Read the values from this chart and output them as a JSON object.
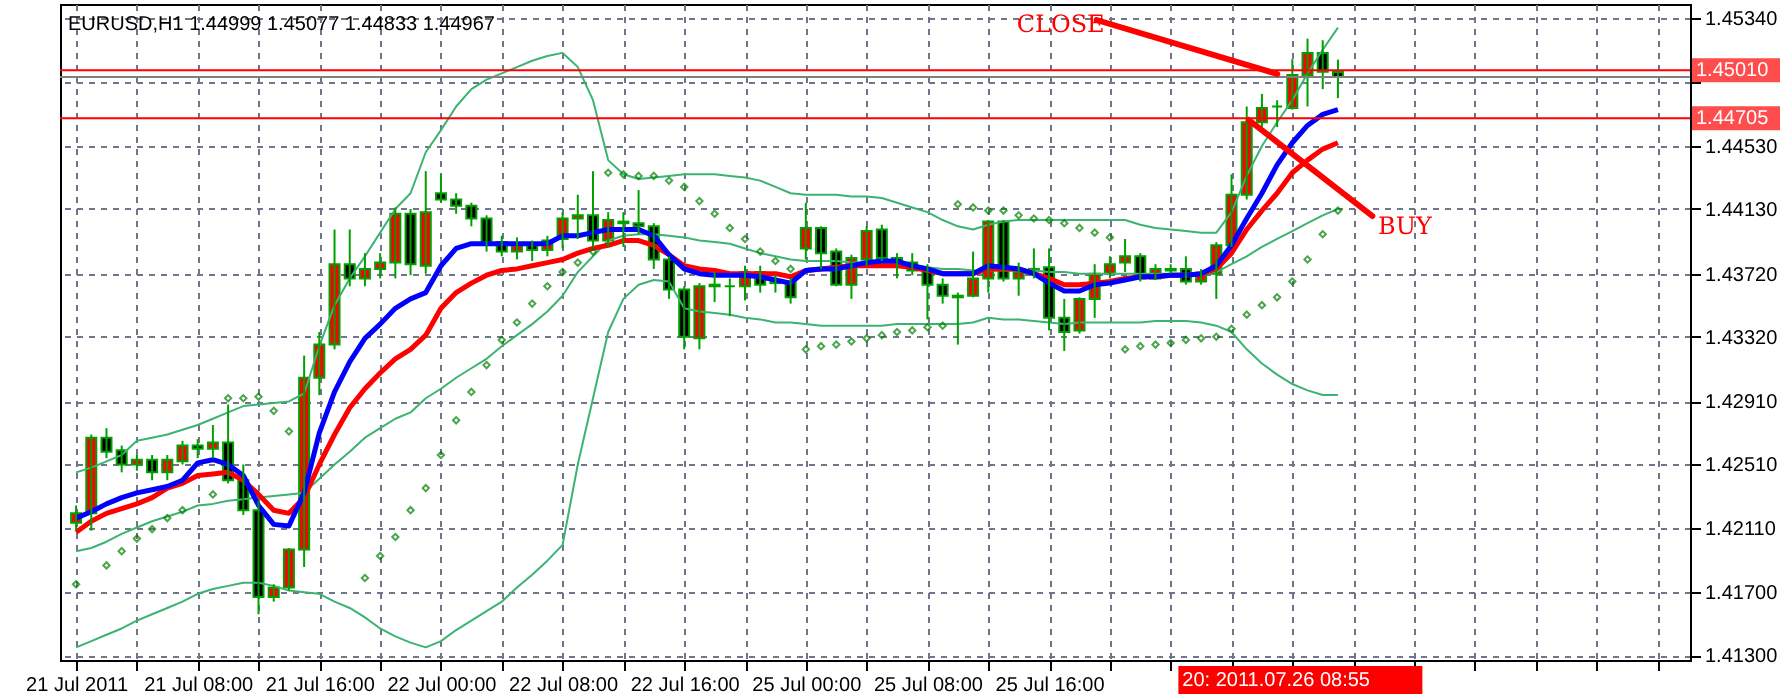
{
  "chart_data": {
    "type": "candlestick",
    "title": "EURUSD,H1  1.44999 1.45077 1.44833 1.44967",
    "categories": [
      "21 Jul 2011",
      null,
      null,
      null,
      null,
      null,
      null,
      null,
      "21 Jul 08:00",
      null,
      null,
      null,
      null,
      null,
      null,
      null,
      "21 Jul 16:00",
      null,
      null,
      null,
      null,
      null,
      null,
      null,
      "22 Jul 00:00",
      null,
      null,
      null,
      null,
      null,
      null,
      null,
      "22 Jul 08:00",
      null,
      null,
      null,
      null,
      null,
      null,
      null,
      "22 Jul 16:00",
      null,
      null,
      null,
      null,
      null,
      null,
      null,
      "25 Jul 00:00",
      null,
      null,
      null,
      null,
      null,
      null,
      null,
      "25 Jul 08:00",
      null,
      null,
      null,
      null,
      null,
      null,
      null,
      "25 Jul 16:00",
      null,
      null,
      null,
      null,
      null,
      null,
      null,
      null,
      null,
      null,
      null,
      null,
      null,
      null,
      null,
      null,
      null,
      null,
      null
    ],
    "ohlc": [
      [
        1.4214,
        1.4225,
        1.4209,
        1.422
      ],
      [
        1.422,
        1.427,
        1.4209,
        1.4268
      ],
      [
        1.4268,
        1.4274,
        1.4255,
        1.4259
      ],
      [
        1.426,
        1.4263,
        1.4246,
        1.4251
      ],
      [
        1.4251,
        1.4257,
        1.4247,
        1.4254
      ],
      [
        1.4254,
        1.4257,
        1.4241,
        1.4246
      ],
      [
        1.4246,
        1.4257,
        1.4241,
        1.4254
      ],
      [
        1.4253,
        1.4266,
        1.4251,
        1.4263
      ],
      [
        1.4263,
        1.4267,
        1.4255,
        1.4261
      ],
      [
        1.4261,
        1.4276,
        1.4255,
        1.4265
      ],
      [
        1.4265,
        1.4289,
        1.4239,
        1.4241
      ],
      [
        1.4241,
        1.4251,
        1.4219,
        1.4222
      ],
      [
        1.4222,
        1.4228,
        1.4156,
        1.4167
      ],
      [
        1.4167,
        1.4175,
        1.4164,
        1.4173
      ],
      [
        1.4173,
        1.4198,
        1.4171,
        1.4197
      ],
      [
        1.4197,
        1.432,
        1.4186,
        1.4306
      ],
      [
        1.4306,
        1.4335,
        1.4295,
        1.4327
      ],
      [
        1.4327,
        1.44,
        1.4324,
        1.4378
      ],
      [
        1.4378,
        1.44,
        1.4364,
        1.4369
      ],
      [
        1.4369,
        1.4385,
        1.4364,
        1.4375
      ],
      [
        1.4375,
        1.4385,
        1.4369,
        1.4379
      ],
      [
        1.4379,
        1.4414,
        1.4369,
        1.441
      ],
      [
        1.441,
        1.4413,
        1.4371,
        1.4378
      ],
      [
        1.4377,
        1.4437,
        1.4372,
        1.4411
      ],
      [
        1.4423,
        1.4435,
        1.4417,
        1.4419
      ],
      [
        1.4419,
        1.4423,
        1.441,
        1.4415
      ],
      [
        1.4415,
        1.4417,
        1.4402,
        1.4407
      ],
      [
        1.4407,
        1.4409,
        1.4386,
        1.4392
      ],
      [
        1.4392,
        1.4396,
        1.4383,
        1.4386
      ],
      [
        1.4386,
        1.4395,
        1.4381,
        1.439
      ],
      [
        1.439,
        1.4393,
        1.438,
        1.4387
      ],
      [
        1.4387,
        1.4396,
        1.4383,
        1.4393
      ],
      [
        1.4394,
        1.4411,
        1.4388,
        1.4407
      ],
      [
        1.4407,
        1.4422,
        1.4394,
        1.4409
      ],
      [
        1.4409,
        1.4437,
        1.4389,
        1.4393
      ],
      [
        1.4393,
        1.4411,
        1.4389,
        1.4406
      ],
      [
        1.4405,
        1.4411,
        1.4389,
        1.4404
      ],
      [
        1.4404,
        1.4425,
        1.4397,
        1.4402
      ],
      [
        1.4402,
        1.4404,
        1.4375,
        1.4381
      ],
      [
        1.4381,
        1.4383,
        1.4356,
        1.4362
      ],
      [
        1.4362,
        1.4364,
        1.4324,
        1.4332
      ],
      [
        1.4331,
        1.4366,
        1.4324,
        1.4364
      ],
      [
        1.4365,
        1.4373,
        1.4354,
        1.4364
      ],
      [
        1.4364,
        1.4369,
        1.4345,
        1.4364
      ],
      [
        1.4364,
        1.4377,
        1.4355,
        1.4373
      ],
      [
        1.4373,
        1.4377,
        1.436,
        1.4365
      ],
      [
        1.4367,
        1.4371,
        1.436,
        1.4366
      ],
      [
        1.4367,
        1.4369,
        1.4353,
        1.4357
      ],
      [
        1.4388,
        1.4417,
        1.4381,
        1.4401
      ],
      [
        1.4401,
        1.4402,
        1.4375,
        1.4385
      ],
      [
        1.4386,
        1.4388,
        1.4364,
        1.4365
      ],
      [
        1.4365,
        1.4384,
        1.4356,
        1.4382
      ],
      [
        1.4381,
        1.4402,
        1.4377,
        1.4399
      ],
      [
        1.44,
        1.4403,
        1.438,
        1.4382
      ],
      [
        1.4382,
        1.4385,
        1.4369,
        1.4379
      ],
      [
        1.4379,
        1.4385,
        1.4371,
        1.4374
      ],
      [
        1.4374,
        1.4378,
        1.4343,
        1.4365
      ],
      [
        1.4365,
        1.4369,
        1.4353,
        1.4358
      ],
      [
        1.4358,
        1.436,
        1.4327,
        1.4357
      ],
      [
        1.4358,
        1.4386,
        1.4357,
        1.4369
      ],
      [
        1.4369,
        1.4406,
        1.436,
        1.4405
      ],
      [
        1.4405,
        1.4406,
        1.4367,
        1.4369
      ],
      [
        1.4369,
        1.4379,
        1.4358,
        1.4373
      ],
      [
        1.4375,
        1.4388,
        1.4369,
        1.4374
      ],
      [
        1.4376,
        1.4388,
        1.4336,
        1.4344
      ],
      [
        1.4344,
        1.4356,
        1.4323,
        1.4335
      ],
      [
        1.4336,
        1.4357,
        1.4334,
        1.4356
      ],
      [
        1.4356,
        1.4378,
        1.4344,
        1.4372
      ],
      [
        1.4372,
        1.4383,
        1.4369,
        1.4378
      ],
      [
        1.4379,
        1.4394,
        1.4373,
        1.4383
      ],
      [
        1.4383,
        1.4385,
        1.4367,
        1.4369
      ],
      [
        1.4369,
        1.4378,
        1.4368,
        1.4375
      ],
      [
        1.4375,
        1.4378,
        1.4372,
        1.4374
      ],
      [
        1.4375,
        1.4383,
        1.4365,
        1.4367
      ],
      [
        1.4367,
        1.4375,
        1.4365,
        1.4372
      ],
      [
        1.4372,
        1.4392,
        1.4356,
        1.439
      ],
      [
        1.439,
        1.4435,
        1.4389,
        1.4422
      ],
      [
        1.4422,
        1.4478,
        1.4419,
        1.4468
      ],
      [
        1.4468,
        1.4486,
        1.4465,
        1.4477
      ],
      [
        1.4478,
        1.4482,
        1.4465,
        1.4478
      ],
      [
        1.4477,
        1.4508,
        1.4476,
        1.4498
      ],
      [
        1.4498,
        1.4521,
        1.4478,
        1.4512
      ],
      [
        1.4512,
        1.452,
        1.4489,
        1.45
      ],
      [
        1.44999,
        1.45077,
        1.44833,
        1.44967
      ]
    ],
    "series": [
      {
        "type": "line",
        "color": "#3cb371",
        "values": [
          1.4246,
          1.4249,
          1.4253,
          1.4257,
          1.4266,
          1.4268,
          1.427,
          1.4273,
          1.4276,
          1.428,
          1.4284,
          1.4288,
          1.4289,
          1.429,
          1.4291,
          1.4296,
          1.4326,
          1.4352,
          1.4369,
          1.4383,
          1.4398,
          1.4413,
          1.4423,
          1.4449,
          1.4463,
          1.4478,
          1.4489,
          1.4495,
          1.4499,
          1.4503,
          1.4507,
          1.451,
          1.4512,
          1.4503,
          1.4482,
          1.4444,
          1.4435,
          1.4432,
          1.4433,
          1.4434,
          1.4435,
          1.4435,
          1.4435,
          1.4434,
          1.4433,
          1.4431,
          1.4427,
          1.4423,
          1.4422,
          1.4422,
          1.4422,
          1.4421,
          1.4421,
          1.442,
          1.4417,
          1.4414,
          1.4411,
          1.4406,
          1.4402,
          1.44,
          1.4403,
          1.4405,
          1.4406,
          1.4406,
          1.4406,
          1.4406,
          1.4406,
          1.4406,
          1.4406,
          1.4406,
          1.4403,
          1.4401,
          1.44,
          1.4399,
          1.4398,
          1.4398,
          1.4411,
          1.4434,
          1.4453,
          1.4468,
          1.4482,
          1.4499,
          1.4514,
          1.4528
        ]
      },
      {
        "type": "line",
        "color": "#3cb371",
        "values": [
          1.4196,
          1.4198,
          1.4202,
          1.4207,
          1.4211,
          1.4215,
          1.4218,
          1.4221,
          1.4225,
          1.4226,
          1.4228,
          1.4229,
          1.423,
          1.4231,
          1.4232,
          1.4233,
          1.4242,
          1.4251,
          1.4259,
          1.4268,
          1.4274,
          1.428,
          1.4284,
          1.4293,
          1.4299,
          1.4306,
          1.4312,
          1.4318,
          1.4326,
          1.4333,
          1.434,
          1.4348,
          1.4358,
          1.4373,
          1.4383,
          1.4393,
          1.4396,
          1.4397,
          1.4397,
          1.4396,
          1.4395,
          1.4393,
          1.4392,
          1.4391,
          1.4388,
          1.4385,
          1.4383,
          1.4381,
          1.438,
          1.438,
          1.438,
          1.4379,
          1.4379,
          1.4378,
          1.4378,
          1.4377,
          1.4376,
          1.4375,
          1.4375,
          1.4374,
          1.4374,
          1.4374,
          1.4374,
          1.4374,
          1.4373,
          1.4373,
          1.4372,
          1.4372,
          1.4372,
          1.4372,
          1.4372,
          1.4372,
          1.4372,
          1.4372,
          1.4372,
          1.4373,
          1.4378,
          1.4383,
          1.4389,
          1.4394,
          1.4399,
          1.4404,
          1.4409,
          1.4413
        ]
      },
      {
        "type": "line",
        "color": "#3cb371",
        "values": [
          1.4135,
          1.4139,
          1.4143,
          1.4147,
          1.4152,
          1.4156,
          1.416,
          1.4164,
          1.4169,
          1.4172,
          1.4174,
          1.4176,
          1.4176,
          1.4174,
          1.4171,
          1.417,
          1.4169,
          1.4164,
          1.416,
          1.4154,
          1.4147,
          1.4142,
          1.4138,
          1.4135,
          1.4139,
          1.4146,
          1.4152,
          1.4158,
          1.4164,
          1.4173,
          1.4181,
          1.419,
          1.42,
          1.4251,
          1.4293,
          1.4335,
          1.4356,
          1.4365,
          1.4368,
          1.4367,
          1.435,
          1.4348,
          1.4347,
          1.4346,
          1.4344,
          1.4343,
          1.4341,
          1.4341,
          1.434,
          1.4339,
          1.4339,
          1.4339,
          1.4339,
          1.4339,
          1.434,
          1.434,
          1.434,
          1.434,
          1.434,
          1.4341,
          1.4344,
          1.4343,
          1.4343,
          1.4342,
          1.4341,
          1.434,
          1.4341,
          1.4341,
          1.4341,
          1.4341,
          1.4341,
          1.4342,
          1.4342,
          1.4342,
          1.4341,
          1.4339,
          1.4335,
          1.4324,
          1.4315,
          1.4308,
          1.4302,
          1.4298,
          1.4295,
          1.4295
        ]
      },
      {
        "type": "line",
        "color": "#ff0000",
        "values": [
          1.4208,
          1.4215,
          1.422,
          1.4223,
          1.4226,
          1.423,
          1.4236,
          1.4239,
          1.4244,
          1.4245,
          1.4246,
          1.4241,
          1.4232,
          1.4222,
          1.422,
          1.423,
          1.4251,
          1.427,
          1.4287,
          1.4299,
          1.4309,
          1.4318,
          1.4324,
          1.4333,
          1.435,
          1.436,
          1.4366,
          1.4371,
          1.4374,
          1.4375,
          1.4377,
          1.4379,
          1.4381,
          1.4385,
          1.4388,
          1.439,
          1.4393,
          1.4393,
          1.439,
          1.4384,
          1.4377,
          1.4375,
          1.4374,
          1.4372,
          1.4372,
          1.4372,
          1.4372,
          1.437,
          1.4374,
          1.4375,
          1.4376,
          1.4377,
          1.4377,
          1.4377,
          1.4377,
          1.4376,
          1.4374,
          1.4372,
          1.4372,
          1.4372,
          1.4375,
          1.4375,
          1.4375,
          1.4372,
          1.4369,
          1.4365,
          1.4365,
          1.4366,
          1.4367,
          1.4369,
          1.437,
          1.437,
          1.4371,
          1.4371,
          1.4372,
          1.4375,
          1.4385,
          1.44,
          1.4412,
          1.4423,
          1.4436,
          1.4444,
          1.4451,
          1.4455
        ]
      },
      {
        "type": "line",
        "color": "#0000ff",
        "values": [
          1.4217,
          1.4221,
          1.4226,
          1.423,
          1.4233,
          1.4235,
          1.4237,
          1.4241,
          1.4252,
          1.4254,
          1.4251,
          1.4244,
          1.4225,
          1.4213,
          1.4212,
          1.4233,
          1.4271,
          1.4297,
          1.4316,
          1.4331,
          1.434,
          1.435,
          1.4356,
          1.436,
          1.4377,
          1.4388,
          1.4391,
          1.4391,
          1.4391,
          1.4391,
          1.4391,
          1.4391,
          1.4396,
          1.4396,
          1.4398,
          1.44,
          1.44,
          1.44,
          1.4396,
          1.4384,
          1.4375,
          1.4372,
          1.4371,
          1.4371,
          1.4371,
          1.437,
          1.4368,
          1.4366,
          1.4374,
          1.4375,
          1.4375,
          1.4377,
          1.4379,
          1.438,
          1.438,
          1.4377,
          1.4375,
          1.4372,
          1.4372,
          1.4372,
          1.4377,
          1.4376,
          1.4375,
          1.4372,
          1.4366,
          1.4361,
          1.4361,
          1.4365,
          1.4366,
          1.4368,
          1.437,
          1.437,
          1.4371,
          1.4371,
          1.4372,
          1.4377,
          1.439,
          1.4407,
          1.4423,
          1.4441,
          1.4455,
          1.4466,
          1.4473,
          1.4476
        ]
      },
      {
        "type": "scatter",
        "color": "#008000",
        "marker": "diamond",
        "values": [
          1.4175,
          null,
          1.4187,
          1.4196,
          1.4204,
          1.421,
          1.4217,
          1.4222,
          null,
          1.4232,
          1.4293,
          1.4293,
          1.4294,
          1.4285,
          1.4272,
          null,
          null,
          null,
          null,
          1.4179,
          1.4193,
          1.4205,
          1.4222,
          1.4236,
          1.4257,
          1.4279,
          1.4297,
          1.4314,
          1.433,
          1.4341,
          1.4353,
          1.4364,
          1.4373,
          1.4379,
          1.4386,
          1.4436,
          1.4435,
          1.4434,
          1.4434,
          1.4431,
          1.4427,
          1.4418,
          1.441,
          1.4401,
          1.4394,
          1.4386,
          1.438,
          1.4375,
          1.4324,
          1.4326,
          1.4327,
          1.4329,
          1.4331,
          1.4333,
          1.4335,
          1.4336,
          1.4338,
          1.4339,
          1.4416,
          1.4414,
          1.4412,
          1.4412,
          1.4409,
          1.4407,
          1.4406,
          1.4404,
          1.4401,
          1.4398,
          1.4395,
          1.4324,
          1.4326,
          1.4327,
          1.4328,
          1.433,
          1.4331,
          1.4332,
          1.4337,
          1.4346,
          1.4352,
          1.4357,
          1.4367,
          1.4381,
          1.4397,
          1.4412
        ]
      }
    ],
    "ylim": [
      1.4127,
      1.4543
    ],
    "yticks": [
      {
        "value": 1.413,
        "label": "1.41300"
      },
      {
        "value": 1.417,
        "label": "1.41700"
      },
      {
        "value": 1.4211,
        "label": "1.42110"
      },
      {
        "value": 1.4251,
        "label": "1.42510"
      },
      {
        "value": 1.4291,
        "label": "1.42910"
      },
      {
        "value": 1.4332,
        "label": "1.43320"
      },
      {
        "value": 1.4372,
        "label": "1.43720"
      },
      {
        "value": 1.4413,
        "label": "1.44130"
      },
      {
        "value": 1.4453,
        "label": "1.44530"
      },
      {
        "value": 1.4494,
        "label": null
      },
      {
        "value": 1.4534,
        "label": "1.45340"
      }
    ],
    "ref_lines": [
      {
        "axis": "y",
        "value": 1.4501,
        "label": "1.45010",
        "color": "#ff0000"
      },
      {
        "axis": "y",
        "value": 1.44705,
        "label": "1.44705",
        "color": "#ff0000"
      },
      {
        "axis": "y",
        "value": 1.44967,
        "color": "#808080"
      }
    ],
    "annotations": [
      "CLOSE",
      "BUY",
      "20: 2011.07.26 08:55"
    ],
    "grid": true
  }
}
